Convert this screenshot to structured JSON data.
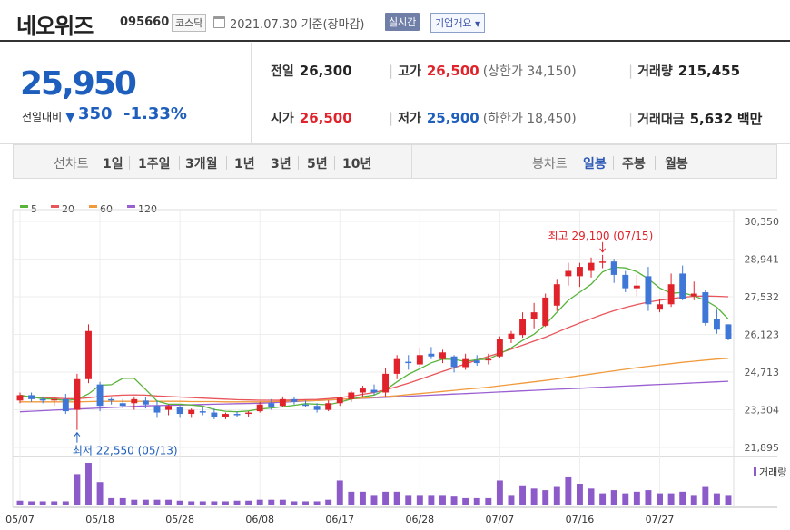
{
  "header": {
    "name": "네오위즈",
    "code": "095660",
    "market": "코스닥",
    "date": "2021.07.30 기준(장마감)",
    "realtime_button": "실시간",
    "company_info_button": "기업개요"
  },
  "summary": {
    "price": "25,950",
    "change_label": "전일대비",
    "change_value": "350",
    "change_pct": "-1.33%",
    "fields": {
      "prev_label": "전일",
      "prev_value": "26,300",
      "high_label": "고가",
      "high_value": "26,500",
      "upper_limit": "(상한가 34,150)",
      "volume_label": "거래량",
      "volume_value": "215,455",
      "open_label": "시가",
      "open_value": "26,500",
      "low_label": "저가",
      "low_value": "25,900",
      "lower_limit": "(하한가 18,450)",
      "amount_label": "거래대금",
      "amount_value": "5,632",
      "amount_unit": "백만"
    }
  },
  "tabs": {
    "line_chart": "선차트",
    "periods": [
      "1일",
      "1주일",
      "3개월",
      "1년",
      "3년",
      "5년",
      "10년"
    ],
    "candle_chart": "봉차트",
    "candle_periods": [
      "일봉",
      "주봉",
      "월봉"
    ]
  },
  "colors": {
    "up": "#e0222a",
    "down": "#3f77d6",
    "ma5": "#58b43a",
    "ma20": "#e8555b",
    "ma60": "#f09a3c",
    "ma120": "#9a5fd0",
    "volume": "#8c5bc9"
  },
  "chart_data": {
    "type": "candlestick",
    "legend": [
      "5",
      "20",
      "60",
      "120"
    ],
    "y_ticks": [
      "30,350",
      "28,941",
      "27,532",
      "26,123",
      "24,713",
      "23,304",
      "21,895"
    ],
    "y_range": [
      21895,
      30350
    ],
    "x_ticks": [
      "05/07",
      "05/18",
      "05/28",
      "06/08",
      "06/17",
      "06/28",
      "07/07",
      "07/16",
      "07/27"
    ],
    "x_tick_index": [
      0,
      7,
      14,
      21,
      28,
      35,
      42,
      49,
      56
    ],
    "high_annotation": "최고 29,100 (07/15)",
    "low_annotation": "최저 22,550 (05/13)",
    "volume_label": "거래량",
    "candles": [
      [
        23650,
        23950,
        23550,
        23850
      ],
      [
        23850,
        23950,
        23600,
        23700
      ],
      [
        23700,
        23800,
        23550,
        23650
      ],
      [
        23650,
        23800,
        23450,
        23700
      ],
      [
        23700,
        23900,
        23150,
        23250
      ],
      [
        23300,
        24650,
        22550,
        24450
      ],
      [
        24450,
        26500,
        24300,
        26250
      ],
      [
        24250,
        24350,
        23250,
        23450
      ],
      [
        23700,
        23750,
        23500,
        23650
      ],
      [
        23550,
        23700,
        23350,
        23450
      ],
      [
        23550,
        23800,
        23300,
        23700
      ],
      [
        23650,
        23800,
        23350,
        23500
      ],
      [
        23450,
        23650,
        23000,
        23200
      ],
      [
        23300,
        23500,
        23100,
        23450
      ],
      [
        23400,
        23450,
        23000,
        23150
      ],
      [
        23150,
        23350,
        23000,
        23300
      ],
      [
        23250,
        23400,
        23100,
        23200
      ],
      [
        23200,
        23350,
        22950,
        23050
      ],
      [
        23050,
        23200,
        22950,
        23150
      ],
      [
        23150,
        23250,
        23050,
        23100
      ],
      [
        23150,
        23250,
        23050,
        23200
      ],
      [
        23250,
        23600,
        23200,
        23500
      ],
      [
        23550,
        23700,
        23300,
        23400
      ],
      [
        23450,
        23800,
        23400,
        23700
      ],
      [
        23700,
        23800,
        23500,
        23600
      ],
      [
        23500,
        23650,
        23400,
        23450
      ],
      [
        23450,
        23550,
        23200,
        23300
      ],
      [
        23300,
        23650,
        23250,
        23550
      ],
      [
        23550,
        23800,
        23450,
        23750
      ],
      [
        23700,
        24000,
        23600,
        23950
      ],
      [
        23950,
        24200,
        23800,
        24100
      ],
      [
        24050,
        24250,
        23850,
        23950
      ],
      [
        23950,
        24850,
        23800,
        24650
      ],
      [
        24650,
        25350,
        24450,
        25200
      ],
      [
        25100,
        25350,
        24800,
        25050
      ],
      [
        25000,
        25600,
        24900,
        25350
      ],
      [
        25400,
        25650,
        25200,
        25300
      ],
      [
        25200,
        25550,
        25050,
        25450
      ],
      [
        25300,
        25350,
        24700,
        24900
      ],
      [
        24900,
        25400,
        24800,
        25200
      ],
      [
        25150,
        25350,
        24950,
        25050
      ],
      [
        25150,
        25400,
        25000,
        25200
      ],
      [
        25300,
        26050,
        25250,
        25950
      ],
      [
        25950,
        26250,
        25800,
        26150
      ],
      [
        26100,
        26950,
        26000,
        26700
      ],
      [
        26700,
        27300,
        26350,
        26950
      ],
      [
        26450,
        27650,
        26400,
        27500
      ],
      [
        27200,
        28200,
        27000,
        28000
      ],
      [
        28300,
        28800,
        27950,
        28500
      ],
      [
        28300,
        28800,
        27900,
        28650
      ],
      [
        28500,
        29000,
        28250,
        28800
      ],
      [
        28800,
        29100,
        28600,
        28850
      ],
      [
        28850,
        28950,
        28050,
        28350
      ],
      [
        28350,
        28500,
        27700,
        27850
      ],
      [
        27850,
        28350,
        27550,
        27950
      ],
      [
        28300,
        28650,
        27000,
        27250
      ],
      [
        27050,
        27450,
        26950,
        27250
      ],
      [
        27250,
        28400,
        27150,
        28000
      ],
      [
        28400,
        28700,
        27400,
        27450
      ],
      [
        27550,
        28100,
        27400,
        27650
      ],
      [
        27700,
        27800,
        26450,
        26550
      ],
      [
        26700,
        27050,
        26150,
        26300
      ],
      [
        26500,
        26500,
        25900,
        25950
      ]
    ],
    "volume": [
      12,
      10,
      10,
      10,
      10,
      95,
      130,
      70,
      20,
      20,
      15,
      15,
      15,
      15,
      12,
      10,
      10,
      10,
      10,
      12,
      12,
      15,
      15,
      15,
      10,
      10,
      10,
      15,
      75,
      40,
      40,
      30,
      40,
      40,
      30,
      30,
      30,
      30,
      25,
      20,
      20,
      20,
      75,
      30,
      60,
      50,
      45,
      55,
      85,
      65,
      50,
      35,
      45,
      35,
      40,
      45,
      35,
      35,
      40,
      30,
      55,
      35,
      30
    ],
    "ma5": [
      23850,
      23780,
      23720,
      23700,
      23650,
      23690,
      23900,
      24220,
      24240,
      24480,
      24480,
      24060,
      23630,
      23510,
      23510,
      23480,
      23440,
      23310,
      23250,
      23230,
      23260,
      23330,
      23370,
      23420,
      23470,
      23530,
      23510,
      23490,
      23590,
      23700,
      23790,
      23850,
      24050,
      24350,
      24630,
      24840,
      25060,
      25200,
      25190,
      25110,
      25180,
      25200,
      25400,
      25620,
      25900,
      26130,
      26490,
      26950,
      27400,
      27700,
      28000,
      28460,
      28640,
      28610,
      28470,
      28200,
      27860,
      27660,
      27690,
      27560,
      27400,
      27140,
      26700
    ],
    "ma20": [
      23800,
      23780,
      23760,
      23740,
      23720,
      23720,
      23750,
      23800,
      23830,
      23850,
      23860,
      23850,
      23820,
      23800,
      23780,
      23760,
      23740,
      23720,
      23700,
      23680,
      23670,
      23660,
      23660,
      23660,
      23670,
      23680,
      23690,
      23720,
      23760,
      23810,
      23880,
      23950,
      24050,
      24170,
      24300,
      24440,
      24590,
      24740,
      24880,
      25020,
      25160,
      25300,
      25430,
      25570,
      25720,
      25870,
      26020,
      26200,
      26380,
      26550,
      26710,
      26870,
      27010,
      27130,
      27240,
      27330,
      27400,
      27460,
      27510,
      27550,
      27560,
      27550,
      27530
    ],
    "ma60": [
      23600,
      23600,
      23600,
      23600,
      23600,
      23600,
      23610,
      23620,
      23620,
      23620,
      23620,
      23620,
      23620,
      23620,
      23620,
      23610,
      23610,
      23610,
      23600,
      23600,
      23600,
      23600,
      23610,
      23620,
      23630,
      23640,
      23650,
      23670,
      23690,
      23710,
      23740,
      23770,
      23800,
      23830,
      23870,
      23910,
      23950,
      23990,
      24030,
      24070,
      24110,
      24150,
      24200,
      24250,
      24300,
      24350,
      24400,
      24460,
      24520,
      24580,
      24640,
      24700,
      24760,
      24820,
      24880,
      24930,
      24980,
      25030,
      25080,
      25120,
      25160,
      25200,
      25230
    ],
    "ma120": [
      23230,
      23250,
      23270,
      23290,
      23310,
      23330,
      23350,
      23370,
      23390,
      23410,
      23430,
      23450,
      23460,
      23470,
      23480,
      23490,
      23500,
      23510,
      23520,
      23530,
      23540,
      23550,
      23570,
      23590,
      23610,
      23630,
      23650,
      23670,
      23690,
      23710,
      23730,
      23750,
      23770,
      23790,
      23810,
      23830,
      23850,
      23870,
      23890,
      23910,
      23930,
      23950,
      23970,
      23990,
      24010,
      24030,
      24050,
      24070,
      24090,
      24110,
      24130,
      24150,
      24170,
      24190,
      24210,
      24230,
      24250,
      24270,
      24290,
      24310,
      24330,
      24350,
      24370
    ]
  }
}
